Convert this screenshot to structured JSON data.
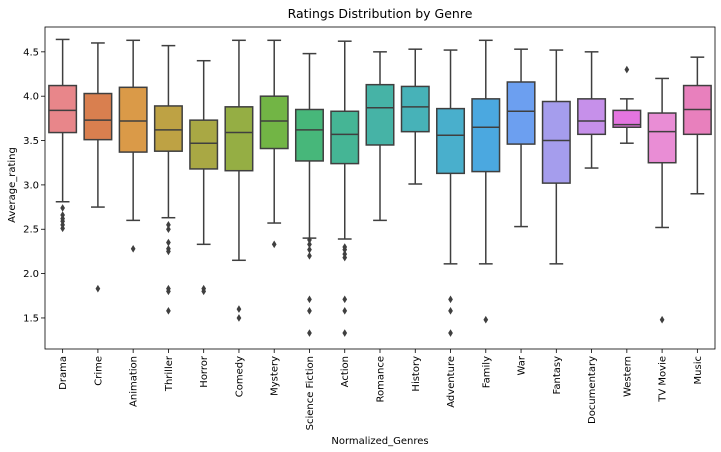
{
  "chart_data": {
    "type": "box",
    "title": "Ratings Distribution by Genre",
    "xlabel": "Normalized_Genres",
    "ylabel": "Average_rating",
    "ylim": [
      1.15,
      4.78
    ],
    "yticks": [
      1.5,
      2.0,
      2.5,
      3.0,
      3.5,
      4.0,
      4.5
    ],
    "grid": false,
    "categories": [
      "Drama",
      "Crime",
      "Animation",
      "Thriller",
      "Horror",
      "Comedy",
      "Mystery",
      "Science Fiction",
      "Action",
      "Romance",
      "History",
      "Adventure",
      "Family",
      "War",
      "Fantasy",
      "Documentary",
      "Western",
      "TV Movie",
      "Music"
    ],
    "colors": [
      "#e8868a",
      "#d97f4f",
      "#da9a48",
      "#bea244",
      "#a9a844",
      "#95ae44",
      "#72b545",
      "#47b77a",
      "#45b595",
      "#46b3a6",
      "#47b2b8",
      "#49afcc",
      "#4ba8e0",
      "#6c9ff0",
      "#a59ded",
      "#c690ea",
      "#e475e0",
      "#e98dd5",
      "#e880bd"
    ],
    "boxes": [
      {
        "whislo": 2.81,
        "q1": 3.59,
        "med": 3.84,
        "q3": 4.12,
        "whishi": 4.64,
        "fliers": [
          2.74,
          2.66,
          2.62,
          2.59,
          2.55,
          2.51
        ]
      },
      {
        "whislo": 2.75,
        "q1": 3.51,
        "med": 3.73,
        "q3": 4.03,
        "whishi": 4.6,
        "fliers": [
          1.83
        ]
      },
      {
        "whislo": 2.6,
        "q1": 3.37,
        "med": 3.72,
        "q3": 4.1,
        "whishi": 4.63,
        "fliers": [
          2.28
        ]
      },
      {
        "whislo": 2.63,
        "q1": 3.38,
        "med": 3.62,
        "q3": 3.89,
        "whishi": 4.57,
        "fliers": [
          2.55,
          2.5,
          2.35,
          2.28,
          2.25,
          1.83,
          1.8,
          1.58
        ]
      },
      {
        "whislo": 2.33,
        "q1": 3.18,
        "med": 3.47,
        "q3": 3.73,
        "whishi": 4.4,
        "fliers": [
          1.83,
          1.8
        ]
      },
      {
        "whislo": 2.15,
        "q1": 3.16,
        "med": 3.59,
        "q3": 3.88,
        "whishi": 4.63,
        "fliers": [
          1.6,
          1.5
        ]
      },
      {
        "whislo": 2.57,
        "q1": 3.41,
        "med": 3.72,
        "q3": 4.0,
        "whishi": 4.63,
        "fliers": [
          2.33
        ]
      },
      {
        "whislo": 2.4,
        "q1": 3.27,
        "med": 3.62,
        "q3": 3.85,
        "whishi": 4.48,
        "fliers": [
          2.38,
          2.33,
          2.27,
          2.2,
          1.71,
          1.58,
          1.33
        ]
      },
      {
        "whislo": 2.39,
        "q1": 3.24,
        "med": 3.57,
        "q3": 3.83,
        "whishi": 4.62,
        "fliers": [
          2.3,
          2.27,
          2.22,
          2.18,
          1.71,
          1.58,
          1.33
        ]
      },
      {
        "whislo": 2.6,
        "q1": 3.45,
        "med": 3.87,
        "q3": 4.13,
        "whishi": 4.5,
        "fliers": []
      },
      {
        "whislo": 3.01,
        "q1": 3.6,
        "med": 3.88,
        "q3": 4.11,
        "whishi": 4.53,
        "fliers": []
      },
      {
        "whislo": 2.11,
        "q1": 3.13,
        "med": 3.56,
        "q3": 3.86,
        "whishi": 4.52,
        "fliers": [
          1.71,
          1.58,
          1.33
        ]
      },
      {
        "whislo": 2.11,
        "q1": 3.15,
        "med": 3.65,
        "q3": 3.97,
        "whishi": 4.63,
        "fliers": [
          1.48
        ]
      },
      {
        "whislo": 2.53,
        "q1": 3.46,
        "med": 3.83,
        "q3": 4.16,
        "whishi": 4.53,
        "fliers": []
      },
      {
        "whislo": 2.11,
        "q1": 3.02,
        "med": 3.5,
        "q3": 3.94,
        "whishi": 4.52,
        "fliers": []
      },
      {
        "whislo": 3.19,
        "q1": 3.57,
        "med": 3.72,
        "q3": 3.97,
        "whishi": 4.5,
        "fliers": []
      },
      {
        "whislo": 3.47,
        "q1": 3.65,
        "med": 3.68,
        "q3": 3.84,
        "whishi": 3.97,
        "fliers": [
          4.3
        ]
      },
      {
        "whislo": 2.52,
        "q1": 3.25,
        "med": 3.6,
        "q3": 3.81,
        "whishi": 4.2,
        "fliers": [
          1.48
        ]
      },
      {
        "whislo": 2.9,
        "q1": 3.57,
        "med": 3.85,
        "q3": 4.12,
        "whishi": 4.44,
        "fliers": []
      }
    ]
  }
}
